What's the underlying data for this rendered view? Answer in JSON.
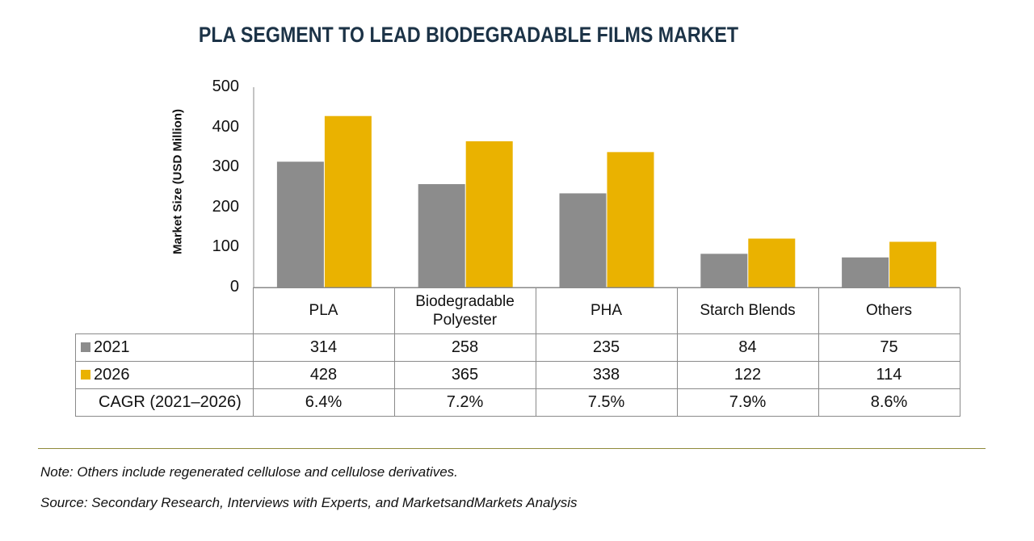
{
  "chart_data": {
    "type": "bar",
    "title": "PLA SEGMENT TO LEAD BIODEGRADABLE FILMS MARKET",
    "ylabel": "Market Size (USD Million)",
    "xlabel": "",
    "ylim": [
      0,
      500
    ],
    "yticks": [
      "0",
      "100",
      "200",
      "300",
      "400",
      "500"
    ],
    "categories": [
      "PLA",
      "Biodegradable Polyester",
      "PHA",
      "Starch Blends",
      "Others"
    ],
    "series": [
      {
        "name": "2021",
        "color": "#8c8c8c",
        "values": [
          314,
          258,
          235,
          84,
          75
        ],
        "labels": [
          "314",
          "258",
          "235",
          "84",
          "75"
        ]
      },
      {
        "name": "2026",
        "color": "#eab200",
        "values": [
          428,
          365,
          338,
          122,
          114
        ],
        "labels": [
          "428",
          "365",
          "338",
          "122",
          "114"
        ]
      }
    ],
    "cagr_label": "CAGR (2021–2026)",
    "cagr": [
      "6.4%",
      "7.2%",
      "7.5%",
      "7.9%",
      "8.6%"
    ]
  },
  "footnotes": {
    "note": "Note: Others include regenerated cellulose and cellulose derivatives.",
    "source": "Source: Secondary Research, Interviews with Experts, and MarketsandMarkets Analysis"
  }
}
